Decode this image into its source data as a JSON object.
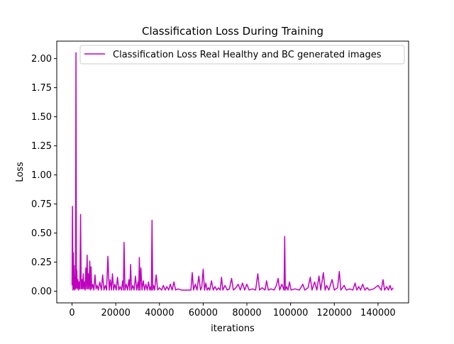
{
  "chart_data": {
    "type": "line",
    "title": "Classification Loss During Training",
    "xlabel": "iterations",
    "ylabel": "Loss",
    "xlim": [
      -7000,
      154000
    ],
    "ylim": [
      -0.1,
      2.15
    ],
    "xticks": [
      {
        "value": 0,
        "label": "0"
      },
      {
        "value": 20000,
        "label": "20000"
      },
      {
        "value": 40000,
        "label": "40000"
      },
      {
        "value": 60000,
        "label": "60000"
      },
      {
        "value": 80000,
        "label": "80000"
      },
      {
        "value": 100000,
        "label": "100000"
      },
      {
        "value": 120000,
        "label": "120000"
      },
      {
        "value": 140000,
        "label": "140000"
      }
    ],
    "yticks": [
      {
        "value": 0.0,
        "label": "0.00"
      },
      {
        "value": 0.25,
        "label": "0.25"
      },
      {
        "value": 0.5,
        "label": "0.50"
      },
      {
        "value": 0.75,
        "label": "0.75"
      },
      {
        "value": 1.0,
        "label": "1.00"
      },
      {
        "value": 1.25,
        "label": "1.25"
      },
      {
        "value": 1.5,
        "label": "1.50"
      },
      {
        "value": 1.75,
        "label": "1.75"
      },
      {
        "value": 2.0,
        "label": "2.00"
      }
    ],
    "grid": false,
    "legend_position": "top-right",
    "series": [
      {
        "name": "Classification Loss Real Healthy and BC generated images",
        "color": "#bf00bf",
        "points": [
          [
            0,
            0.05
          ],
          [
            200,
            0.73
          ],
          [
            400,
            0.01
          ],
          [
            600,
            0.33
          ],
          [
            800,
            0.02
          ],
          [
            1000,
            0.22
          ],
          [
            1200,
            0.01
          ],
          [
            1400,
            0.12
          ],
          [
            1600,
            0.02
          ],
          [
            1800,
            2.05
          ],
          [
            2000,
            0.03
          ],
          [
            2200,
            0.18
          ],
          [
            2400,
            0.02
          ],
          [
            2700,
            0.1
          ],
          [
            3000,
            0.01
          ],
          [
            3300,
            0.08
          ],
          [
            3600,
            0.02
          ],
          [
            3900,
            0.66
          ],
          [
            4200,
            0.02
          ],
          [
            4500,
            0.1
          ],
          [
            4800,
            0.02
          ],
          [
            5100,
            0.15
          ],
          [
            5400,
            0.02
          ],
          [
            5700,
            0.08
          ],
          [
            6000,
            0.01
          ],
          [
            6300,
            0.2
          ],
          [
            6600,
            0.02
          ],
          [
            6900,
            0.31
          ],
          [
            7200,
            0.02
          ],
          [
            7500,
            0.15
          ],
          [
            7800,
            0.02
          ],
          [
            8100,
            0.26
          ],
          [
            8400,
            0.01
          ],
          [
            8700,
            0.21
          ],
          [
            9000,
            0.02
          ],
          [
            9500,
            0.06
          ],
          [
            10000,
            0.01
          ],
          [
            10500,
            0.14
          ],
          [
            11000,
            0.02
          ],
          [
            11500,
            0.05
          ],
          [
            12000,
            0.01
          ],
          [
            12700,
            0.08
          ],
          [
            13400,
            0.01
          ],
          [
            14000,
            0.14
          ],
          [
            14600,
            0.01
          ],
          [
            15200,
            0.05
          ],
          [
            15800,
            0.01
          ],
          [
            16400,
            0.3
          ],
          [
            17000,
            0.01
          ],
          [
            17500,
            0.1
          ],
          [
            18000,
            0.01
          ],
          [
            18500,
            0.15
          ],
          [
            19000,
            0.01
          ],
          [
            19600,
            0.06
          ],
          [
            20200,
            0.01
          ],
          [
            20800,
            0.12
          ],
          [
            21400,
            0.01
          ],
          [
            22000,
            0.04
          ],
          [
            22600,
            0.01
          ],
          [
            23200,
            0.09
          ],
          [
            23500,
            0.01
          ],
          [
            23800,
            0.42
          ],
          [
            24200,
            0.01
          ],
          [
            24800,
            0.06
          ],
          [
            25400,
            0.01
          ],
          [
            26000,
            0.1
          ],
          [
            26400,
            0.01
          ],
          [
            26800,
            0.23
          ],
          [
            27200,
            0.01
          ],
          [
            27800,
            0.05
          ],
          [
            28400,
            0.01
          ],
          [
            29000,
            0.13
          ],
          [
            29600,
            0.01
          ],
          [
            30200,
            0.08
          ],
          [
            30500,
            0.01
          ],
          [
            30800,
            0.29
          ],
          [
            31100,
            0.01
          ],
          [
            31500,
            0.2
          ],
          [
            32000,
            0.01
          ],
          [
            32600,
            0.09
          ],
          [
            33200,
            0.01
          ],
          [
            33800,
            0.06
          ],
          [
            34400,
            0.01
          ],
          [
            35000,
            0.08
          ],
          [
            35600,
            0.01
          ],
          [
            36000,
            0.04
          ],
          [
            36300,
            0.01
          ],
          [
            36600,
            0.61
          ],
          [
            36900,
            0.01
          ],
          [
            37300,
            0.05
          ],
          [
            37800,
            0.01
          ],
          [
            38500,
            0.14
          ],
          [
            39200,
            0.01
          ],
          [
            40000,
            0.03
          ],
          [
            41000,
            0.01
          ],
          [
            41800,
            0.05
          ],
          [
            42600,
            0.01
          ],
          [
            43400,
            0.04
          ],
          [
            44200,
            0.01
          ],
          [
            45000,
            0.06
          ],
          [
            45800,
            0.01
          ],
          [
            46600,
            0.08
          ],
          [
            47400,
            0.01
          ],
          [
            48500,
            0.02
          ],
          [
            50000,
            0.01
          ],
          [
            51500,
            0.01
          ],
          [
            53000,
            0.01
          ],
          [
            54400,
            0.01
          ],
          [
            55000,
            0.16
          ],
          [
            55600,
            0.01
          ],
          [
            56400,
            0.06
          ],
          [
            57200,
            0.01
          ],
          [
            58000,
            0.13
          ],
          [
            58800,
            0.01
          ],
          [
            59400,
            0.04
          ],
          [
            60000,
            0.19
          ],
          [
            60600,
            0.01
          ],
          [
            61200,
            0.07
          ],
          [
            61800,
            0.01
          ],
          [
            62400,
            0.03
          ],
          [
            63000,
            0.01
          ],
          [
            63800,
            0.09
          ],
          [
            64600,
            0.01
          ],
          [
            65400,
            0.04
          ],
          [
            66200,
            0.01
          ],
          [
            67000,
            0.03
          ],
          [
            67800,
            0.01
          ],
          [
            68400,
            0.12
          ],
          [
            69000,
            0.01
          ],
          [
            70000,
            0.05
          ],
          [
            71000,
            0.01
          ],
          [
            72000,
            0.02
          ],
          [
            73000,
            0.11
          ],
          [
            73800,
            0.01
          ],
          [
            75000,
            0.03
          ],
          [
            76000,
            0.06
          ],
          [
            77000,
            0.01
          ],
          [
            78000,
            0.07
          ],
          [
            79000,
            0.01
          ],
          [
            80000,
            0.06
          ],
          [
            81000,
            0.01
          ],
          [
            82500,
            0.02
          ],
          [
            84000,
            0.01
          ],
          [
            85000,
            0.15
          ],
          [
            85800,
            0.01
          ],
          [
            87000,
            0.03
          ],
          [
            88300,
            0.01
          ],
          [
            89000,
            0.09
          ],
          [
            89800,
            0.01
          ],
          [
            91000,
            0.02
          ],
          [
            92500,
            0.01
          ],
          [
            93500,
            0.05
          ],
          [
            94300,
            0.11
          ],
          [
            95000,
            0.01
          ],
          [
            96000,
            0.06
          ],
          [
            97000,
            0.01
          ],
          [
            97300,
            0.47
          ],
          [
            97600,
            0.01
          ],
          [
            98200,
            0.04
          ],
          [
            98800,
            0.01
          ],
          [
            99500,
            0.08
          ],
          [
            100200,
            0.01
          ],
          [
            102000,
            0.02
          ],
          [
            104000,
            0.01
          ],
          [
            105600,
            0.06
          ],
          [
            106500,
            0.01
          ],
          [
            108000,
            0.03
          ],
          [
            109000,
            0.12
          ],
          [
            109800,
            0.01
          ],
          [
            111000,
            0.08
          ],
          [
            112000,
            0.01
          ],
          [
            113000,
            0.13
          ],
          [
            113800,
            0.01
          ],
          [
            115000,
            0.16
          ],
          [
            115800,
            0.01
          ],
          [
            116500,
            0.05
          ],
          [
            117500,
            0.01
          ],
          [
            119000,
            0.1
          ],
          [
            120000,
            0.01
          ],
          [
            121500,
            0.03
          ],
          [
            122300,
            0.17
          ],
          [
            123000,
            0.01
          ],
          [
            124500,
            0.05
          ],
          [
            125500,
            0.01
          ],
          [
            127000,
            0.02
          ],
          [
            128500,
            0.01
          ],
          [
            129500,
            0.07
          ],
          [
            130300,
            0.01
          ],
          [
            131200,
            0.04
          ],
          [
            132000,
            0.01
          ],
          [
            133000,
            0.06
          ],
          [
            134000,
            0.01
          ],
          [
            135000,
            0.03
          ],
          [
            136000,
            0.01
          ],
          [
            138000,
            0.02
          ],
          [
            140000,
            0.05
          ],
          [
            141500,
            0.01
          ],
          [
            142300,
            0.1
          ],
          [
            143000,
            0.01
          ],
          [
            144000,
            0.04
          ],
          [
            144800,
            0.01
          ],
          [
            145500,
            0.05
          ],
          [
            146200,
            0.01
          ],
          [
            147000,
            0.03
          ]
        ]
      }
    ]
  }
}
